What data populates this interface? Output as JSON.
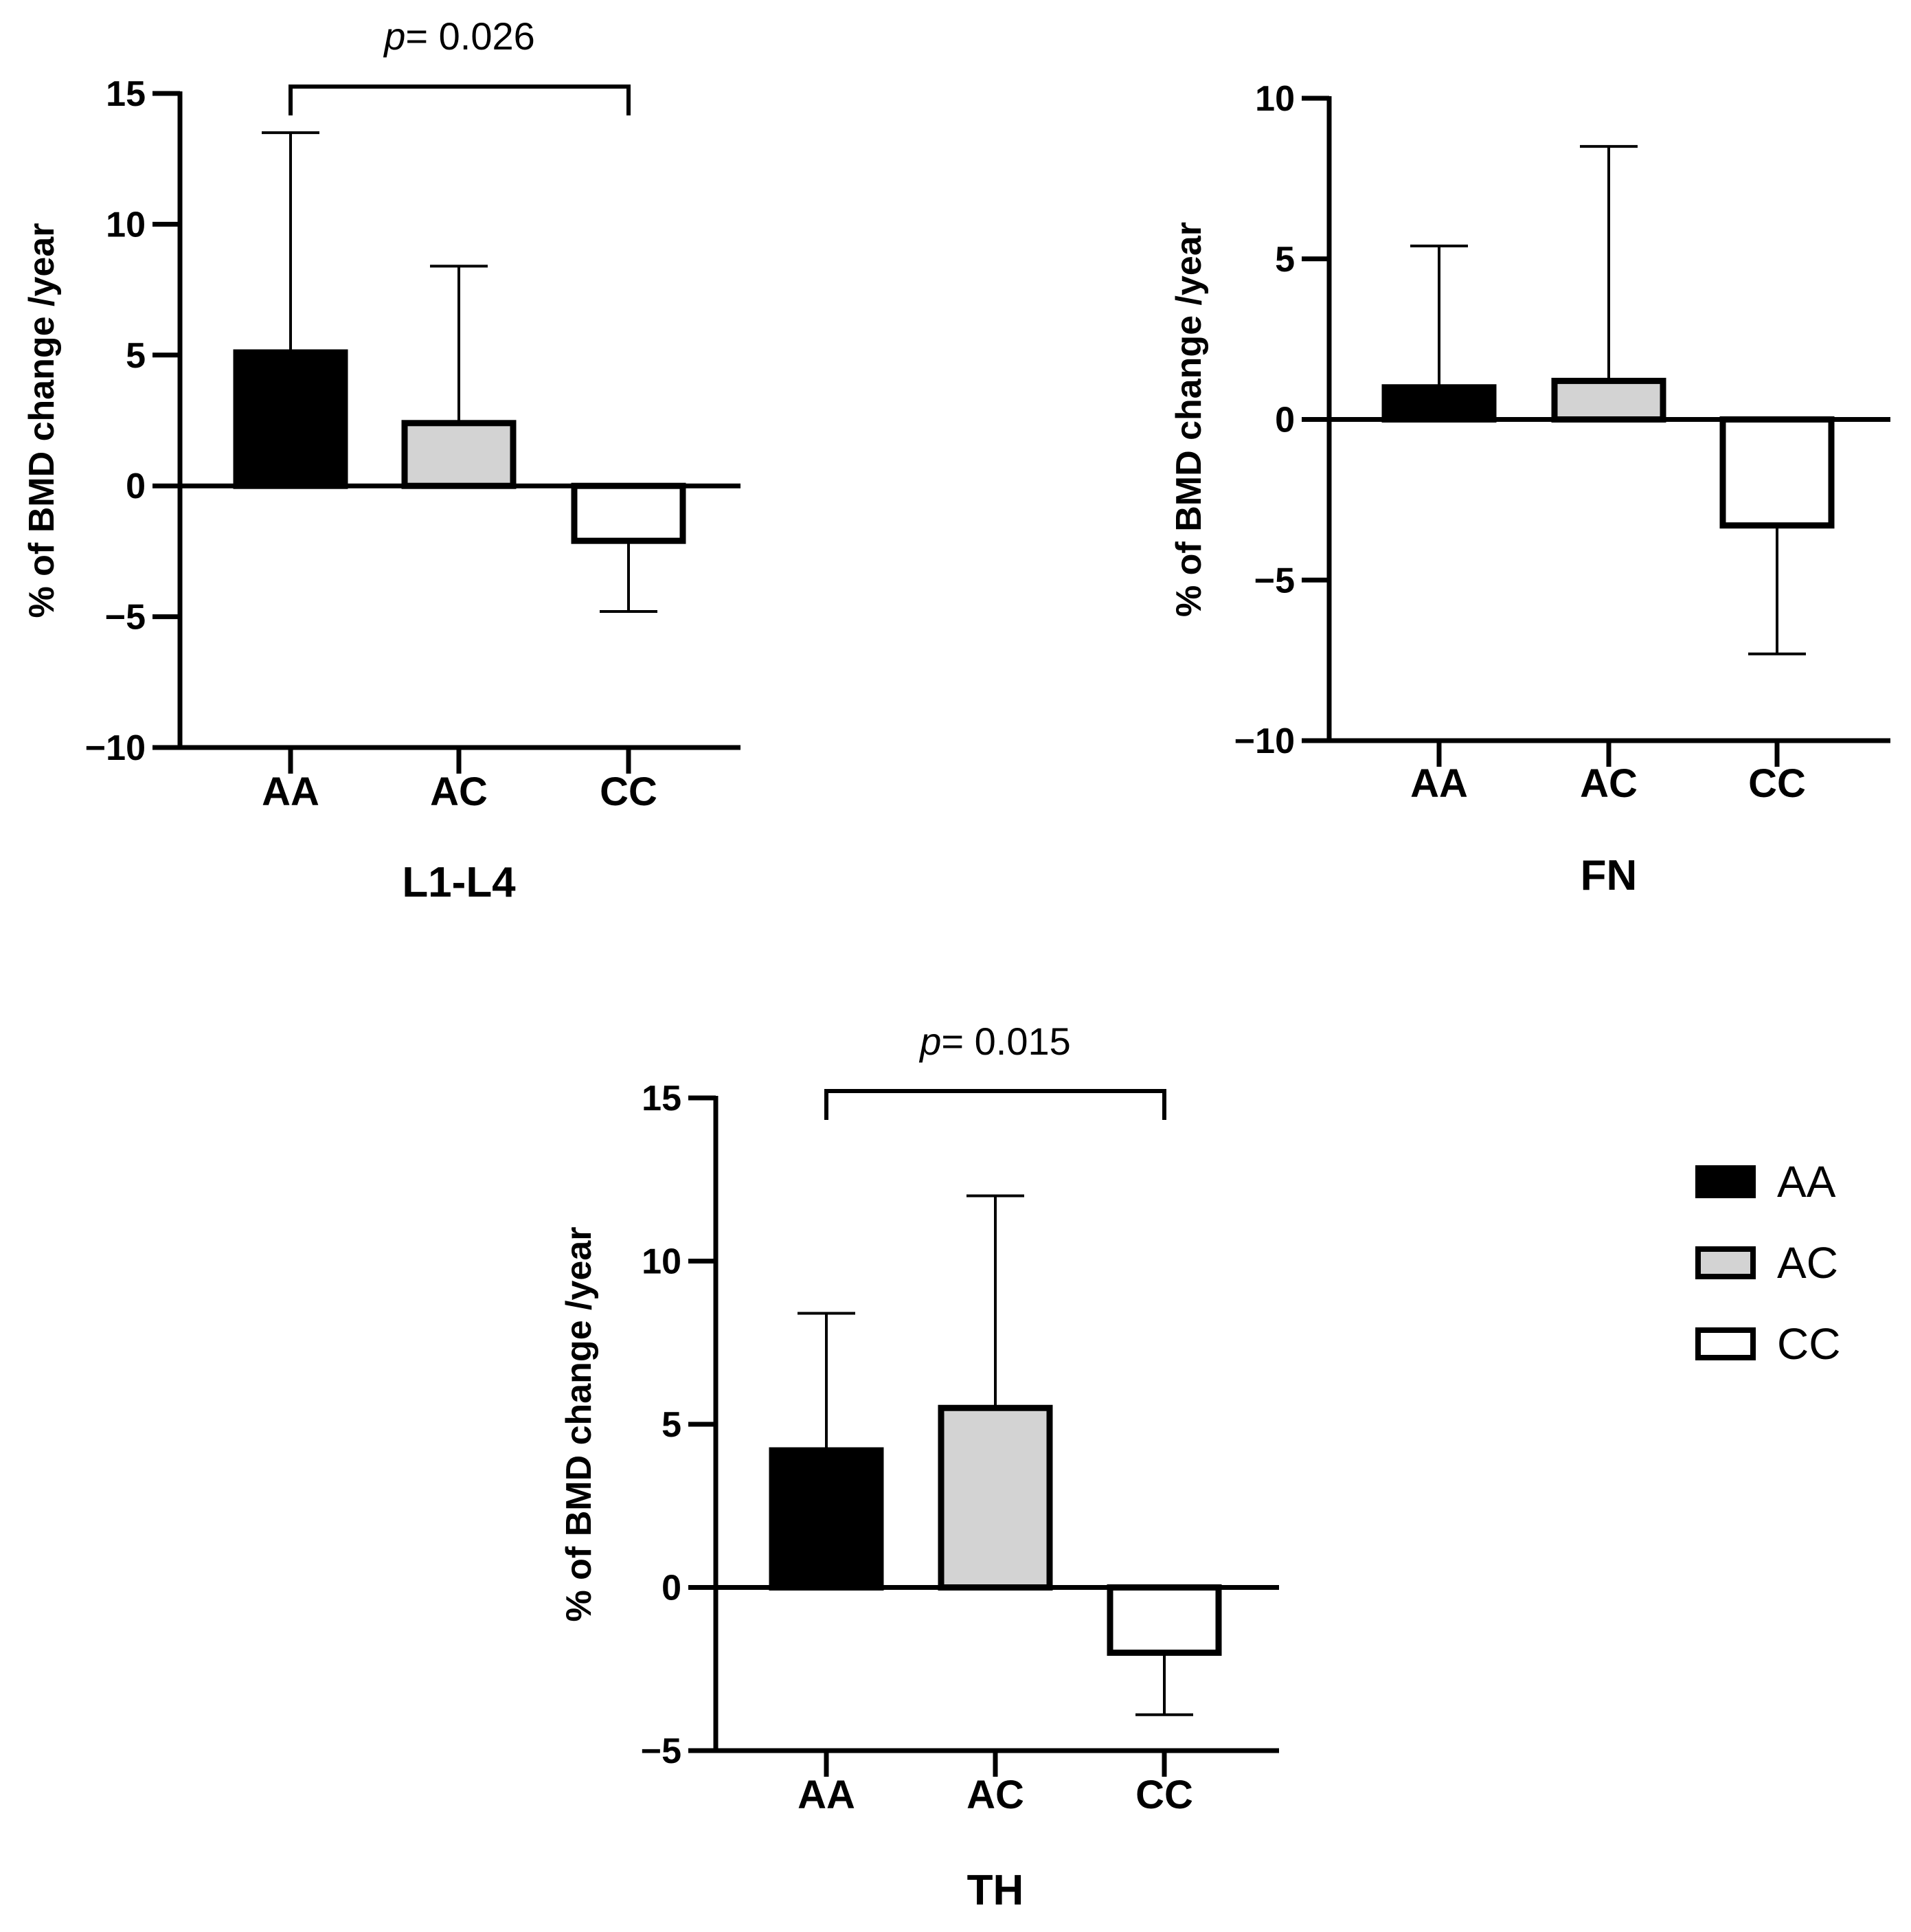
{
  "chart_data": [
    {
      "type": "bar",
      "title": "L1-L4",
      "xlabel": "L1-L4",
      "ylabel": "% of BMD change /year",
      "ylim": [
        -10,
        15
      ],
      "yticks": [
        -10,
        -5,
        0,
        5,
        10,
        15
      ],
      "categories": [
        "AA",
        "AC",
        "CC"
      ],
      "values": [
        5.1,
        2.4,
        -2.1
      ],
      "error_bars": [
        8.4,
        6.0,
        -2.7
      ],
      "colors": [
        "#000000",
        "#d3d3d3",
        "#ffffff"
      ],
      "significance": {
        "from": "AA",
        "to": "CC",
        "p_label": "p",
        "p_value_text": "= 0.026"
      }
    },
    {
      "type": "bar",
      "title": "FN",
      "xlabel": "FN",
      "ylabel": "% of BMD change /year",
      "ylim": [
        -10,
        10
      ],
      "yticks": [
        -10,
        -5,
        0,
        5,
        10
      ],
      "categories": [
        "AA",
        "AC",
        "CC"
      ],
      "values": [
        1.0,
        1.2,
        -3.3
      ],
      "error_bars": [
        4.4,
        7.3,
        -4.0
      ],
      "colors": [
        "#000000",
        "#d3d3d3",
        "#ffffff"
      ]
    },
    {
      "type": "bar",
      "title": "TH",
      "xlabel": "TH",
      "ylabel": "% of BMD change /year",
      "ylim": [
        -5,
        15
      ],
      "yticks": [
        -5,
        0,
        5,
        10,
        15
      ],
      "categories": [
        "AA",
        "AC",
        "CC"
      ],
      "values": [
        4.2,
        5.5,
        -2.0
      ],
      "error_bars": [
        4.2,
        6.5,
        -1.9
      ],
      "colors": [
        "#000000",
        "#d3d3d3",
        "#ffffff"
      ],
      "significance": {
        "from": "AA",
        "to": "CC",
        "p_label": "p",
        "p_value_text": "= 0.015"
      }
    }
  ],
  "legend": {
    "position": "right",
    "items": [
      {
        "label": "AA",
        "color": "#000000"
      },
      {
        "label": "AC",
        "color": "#d3d3d3"
      },
      {
        "label": "CC",
        "color": "#ffffff"
      }
    ]
  }
}
